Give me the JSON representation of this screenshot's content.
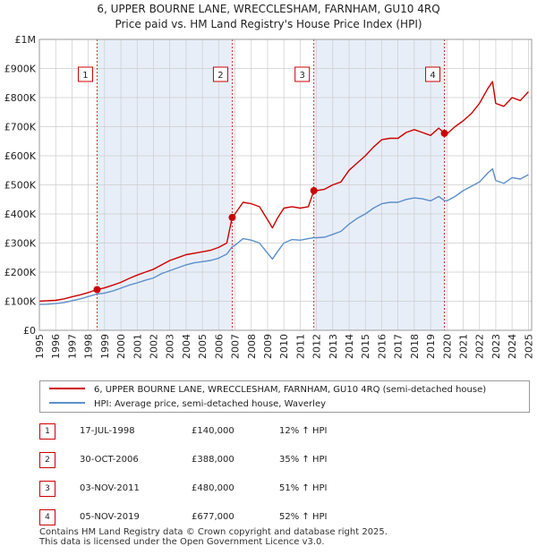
{
  "chart_data": {
    "type": "line",
    "title": "6, UPPER BOURNE LANE, WRECCLESHAM, FARNHAM, GU10 4RQ",
    "subtitle": "Price paid vs. HM Land Registry's House Price Index (HPI)",
    "xlabel": "",
    "ylabel": "",
    "xlim": [
      1995,
      2025.2
    ],
    "ylim": [
      0,
      1000000
    ],
    "y_ticks": [
      {
        "value": 0,
        "label": "£0"
      },
      {
        "value": 100000,
        "label": "£100K"
      },
      {
        "value": 200000,
        "label": "£200K"
      },
      {
        "value": 300000,
        "label": "£300K"
      },
      {
        "value": 400000,
        "label": "£400K"
      },
      {
        "value": 500000,
        "label": "£500K"
      },
      {
        "value": 600000,
        "label": "£600K"
      },
      {
        "value": 700000,
        "label": "£700K"
      },
      {
        "value": 800000,
        "label": "£800K"
      },
      {
        "value": 900000,
        "label": "£900K"
      },
      {
        "value": 1000000,
        "label": "£1M"
      }
    ],
    "x_ticks": [
      "1995",
      "1996",
      "1997",
      "1998",
      "1999",
      "2000",
      "2001",
      "2002",
      "2003",
      "2004",
      "2005",
      "2006",
      "2007",
      "2008",
      "2009",
      "2010",
      "2011",
      "2012",
      "2013",
      "2014",
      "2015",
      "2016",
      "2017",
      "2018",
      "2019",
      "2020",
      "2021",
      "2022",
      "2023",
      "2024",
      "2025"
    ],
    "grid": true,
    "legend_position": "below",
    "series": [
      {
        "name": "6, UPPER BOURNE LANE, WRECCLESHAM, FARNHAM, GU10 4RQ (semi-detached house)",
        "color": "#cc0000",
        "x": [
          1995,
          1995.5,
          1996,
          1996.5,
          1997,
          1997.5,
          1998,
          1998.54,
          1999,
          1999.5,
          2000,
          2000.5,
          2001,
          2001.5,
          2002,
          2002.5,
          2003,
          2003.5,
          2004,
          2004.5,
          2005,
          2005.5,
          2006,
          2006.5,
          2006.83,
          2007,
          2007.5,
          2008,
          2008.5,
          2009,
          2009.3,
          2009.6,
          2010,
          2010.5,
          2011,
          2011.5,
          2011.84,
          2012,
          2012.5,
          2013,
          2013.5,
          2014,
          2014.5,
          2015,
          2015.5,
          2016,
          2016.5,
          2017,
          2017.5,
          2018,
          2018.5,
          2019,
          2019.5,
          2019.85,
          2020,
          2020.5,
          2021,
          2021.5,
          2022,
          2022.5,
          2022.8,
          2023,
          2023.5,
          2024,
          2024.5,
          2025
        ],
        "values": [
          100000,
          102000,
          103000,
          108000,
          115000,
          122000,
          130000,
          140000,
          146000,
          155000,
          165000,
          178000,
          190000,
          200000,
          210000,
          225000,
          240000,
          250000,
          260000,
          265000,
          270000,
          275000,
          285000,
          300000,
          388000,
          400000,
          440000,
          435000,
          425000,
          380000,
          352000,
          385000,
          420000,
          425000,
          420000,
          425000,
          480000,
          480000,
          485000,
          500000,
          510000,
          550000,
          575000,
          600000,
          630000,
          655000,
          660000,
          660000,
          680000,
          690000,
          680000,
          670000,
          695000,
          677000,
          675000,
          700000,
          720000,
          745000,
          780000,
          830000,
          855000,
          780000,
          770000,
          800000,
          790000,
          820000
        ]
      },
      {
        "name": "HPI: Average price, semi-detached house, Waverley",
        "color": "#5b8fc9",
        "x": [
          1995,
          1995.5,
          1996,
          1996.5,
          1997,
          1997.5,
          1998,
          1998.54,
          1999,
          1999.5,
          2000,
          2000.5,
          2001,
          2001.5,
          2002,
          2002.5,
          2003,
          2003.5,
          2004,
          2004.5,
          2005,
          2005.5,
          2006,
          2006.5,
          2006.83,
          2007,
          2007.5,
          2008,
          2008.5,
          2009,
          2009.3,
          2009.6,
          2010,
          2010.5,
          2011,
          2011.5,
          2011.84,
          2012,
          2012.5,
          2013,
          2013.5,
          2014,
          2014.5,
          2015,
          2015.5,
          2016,
          2016.5,
          2017,
          2017.5,
          2018,
          2018.5,
          2019,
          2019.5,
          2019.85,
          2020,
          2020.5,
          2021,
          2021.5,
          2022,
          2022.5,
          2022.8,
          2023,
          2023.5,
          2024,
          2024.5,
          2025
        ],
        "values": [
          89000,
          90000,
          92000,
          95000,
          102000,
          108000,
          116000,
          125000,
          128000,
          135000,
          145000,
          155000,
          163000,
          172000,
          180000,
          195000,
          205000,
          215000,
          225000,
          232000,
          236000,
          240000,
          248000,
          262000,
          287000,
          292000,
          315000,
          310000,
          300000,
          265000,
          245000,
          270000,
          300000,
          312000,
          310000,
          315000,
          318000,
          318000,
          320000,
          330000,
          340000,
          365000,
          385000,
          400000,
          420000,
          435000,
          440000,
          440000,
          450000,
          455000,
          452000,
          445000,
          460000,
          446000,
          445000,
          460000,
          480000,
          495000,
          510000,
          540000,
          555000,
          515000,
          505000,
          525000,
          520000,
          535000
        ]
      }
    ],
    "sales": [
      {
        "num": "1",
        "x": 1998.54,
        "price": 140000
      },
      {
        "num": "2",
        "x": 2006.83,
        "price": 388000
      },
      {
        "num": "3",
        "x": 2011.84,
        "price": 480000
      },
      {
        "num": "4",
        "x": 2019.85,
        "price": 677000
      }
    ]
  },
  "legend": {
    "property_label": "6, UPPER BOURNE LANE, WRECCLESHAM, FARNHAM, GU10 4RQ (semi-detached house)",
    "hpi_label": "HPI: Average price, semi-detached house, Waverley",
    "property_color": "#cc0000",
    "hpi_color": "#5b8fc9"
  },
  "transactions": [
    {
      "num": "1",
      "date": "17-JUL-1998",
      "price": "£140,000",
      "hpi": "12% ↑ HPI"
    },
    {
      "num": "2",
      "date": "30-OCT-2006",
      "price": "£388,000",
      "hpi": "35% ↑ HPI"
    },
    {
      "num": "3",
      "date": "03-NOV-2011",
      "price": "£480,000",
      "hpi": "51% ↑ HPI"
    },
    {
      "num": "4",
      "date": "05-NOV-2019",
      "price": "£677,000",
      "hpi": "52% ↑ HPI"
    }
  ],
  "footer": {
    "line1": "Contains HM Land Registry data © Crown copyright and database right 2025.",
    "line2": "This data is licensed under the Open Government Licence v3.0."
  },
  "colors": {
    "shade": "#e8eef8",
    "grid": "#cccccc",
    "vline": "#cc0000"
  }
}
